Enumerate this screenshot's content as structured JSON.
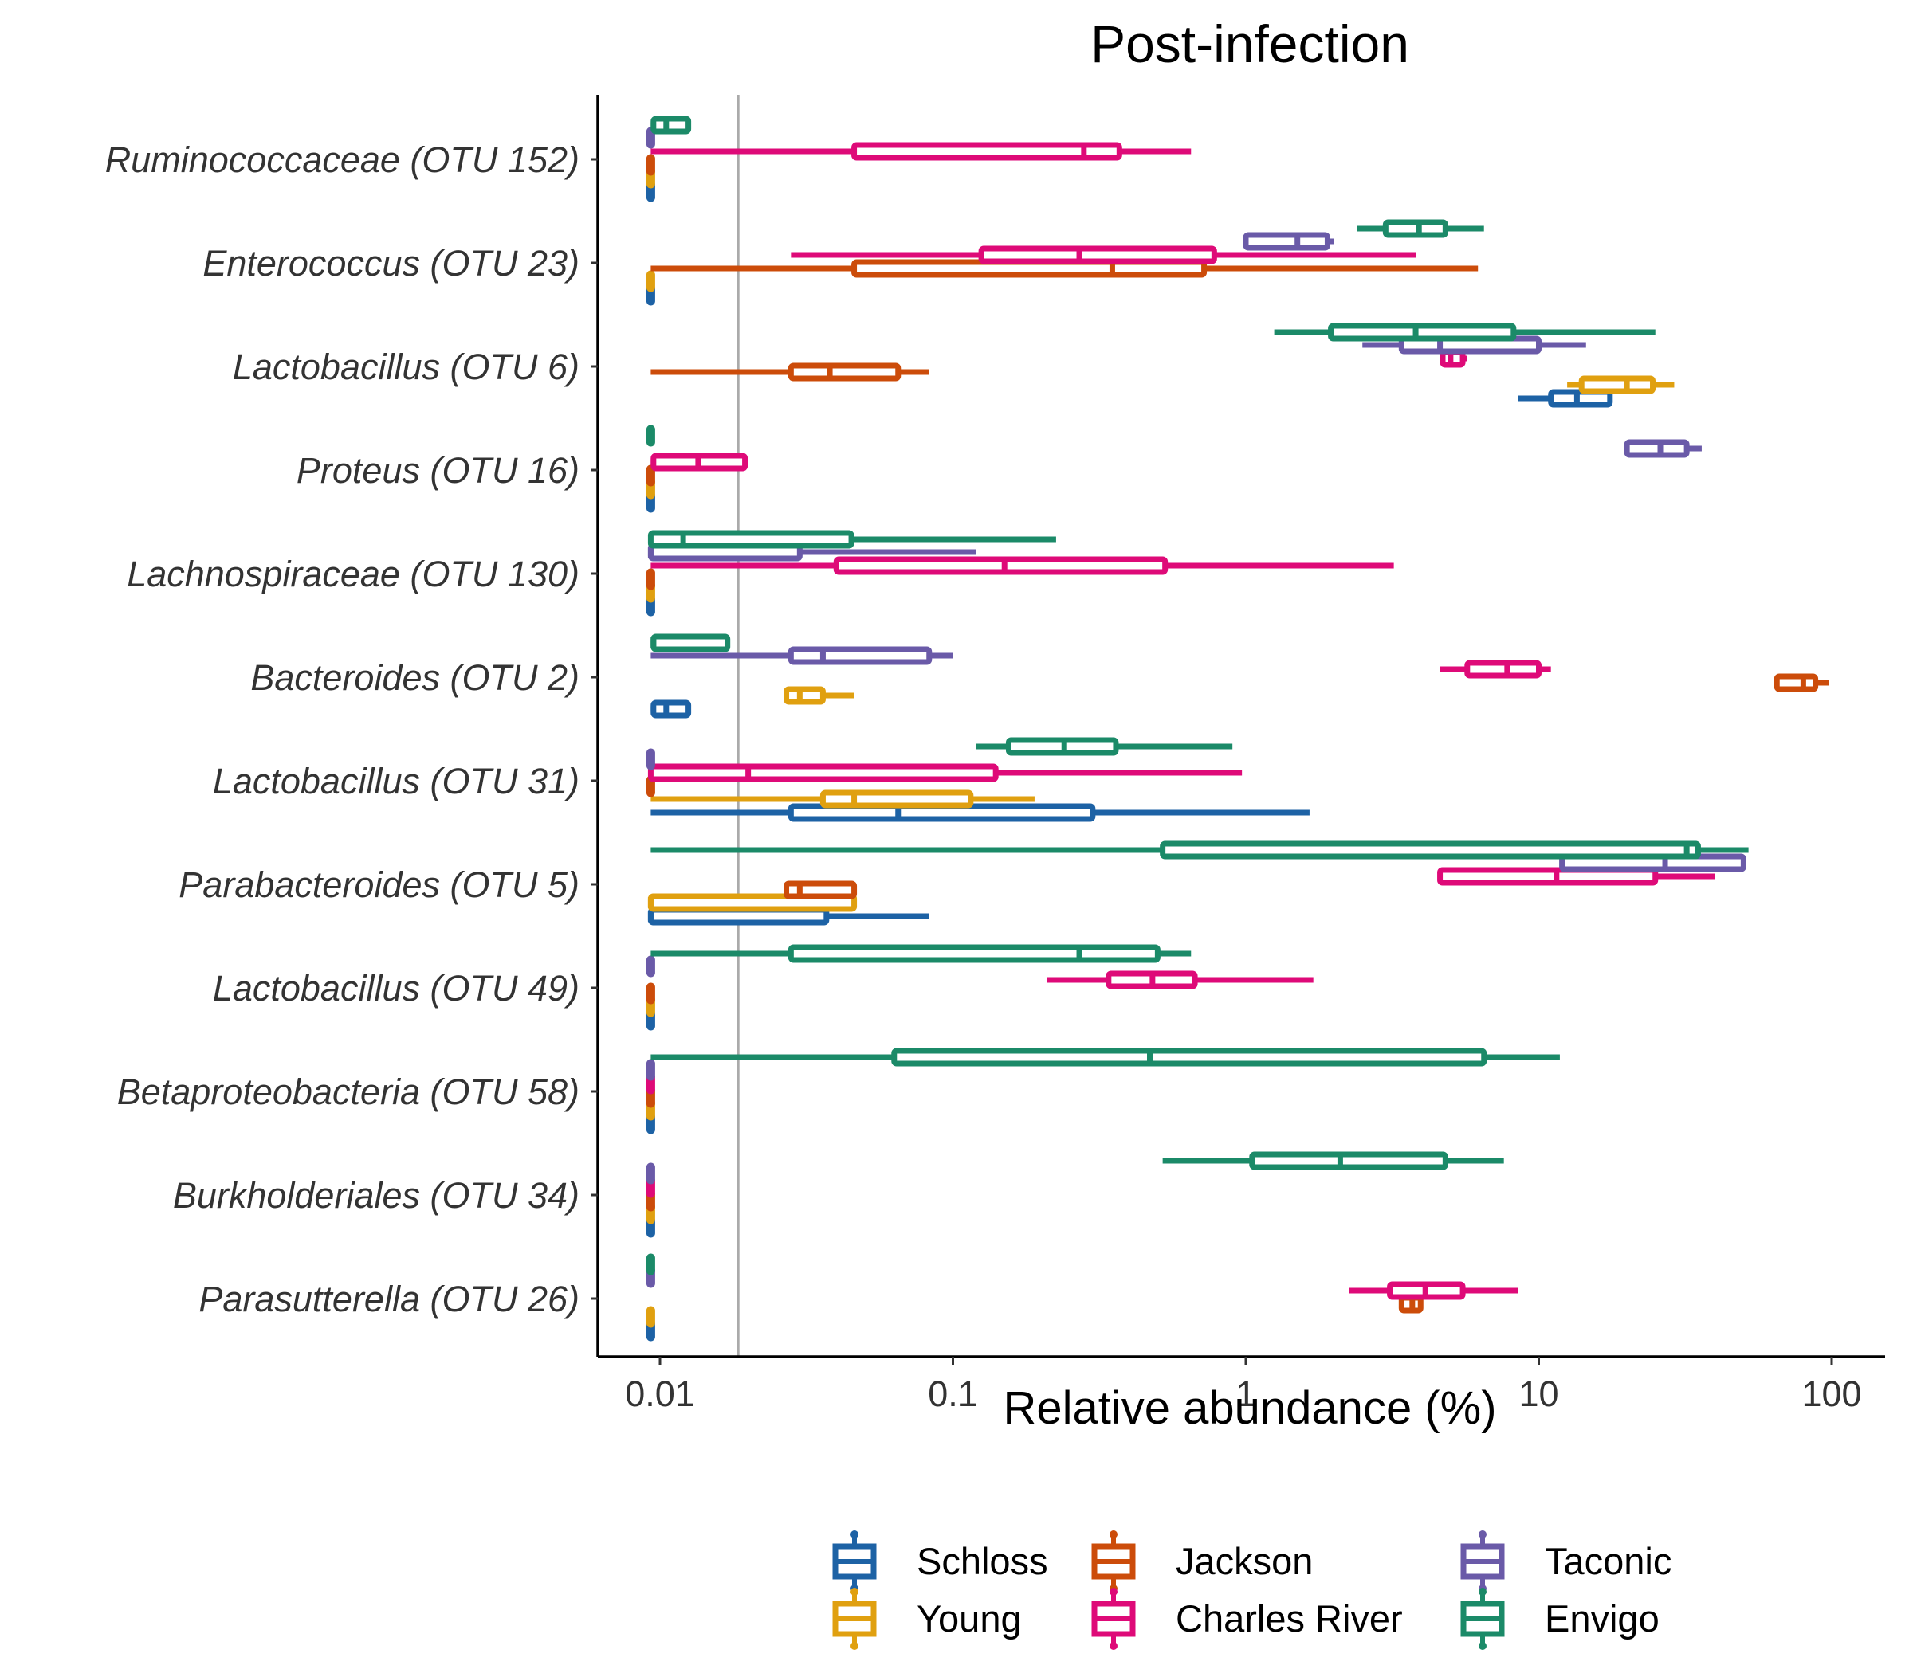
{
  "chart_data": {
    "type": "boxplot",
    "title": "Post-infection",
    "xlabel": "Relative abundance (%)",
    "ylabel": "",
    "x_scale": "log10",
    "xlim": [
      0.0066,
      150
    ],
    "x_ticks": [
      {
        "value": 0.01,
        "label": "0.01"
      },
      {
        "value": 0.1,
        "label": "0.1"
      },
      {
        "value": 1,
        "label": "1"
      },
      {
        "value": 10,
        "label": "10"
      },
      {
        "value": 100,
        "label": "100"
      }
    ],
    "limit_of_detection": 0.0185,
    "grid": false,
    "legend_position": "bottom",
    "series": [
      {
        "name": "Schloss",
        "color": "#1D62A5"
      },
      {
        "name": "Young",
        "color": "#E0A010"
      },
      {
        "name": "Jackson",
        "color": "#CC4C0A"
      },
      {
        "name": "Charles River",
        "color": "#DE0A78"
      },
      {
        "name": "Taconic",
        "color": "#6A5AA8"
      },
      {
        "name": "Envigo",
        "color": "#1B8A68"
      }
    ],
    "categories": [
      "Ruminococcaceae (OTU 152)",
      "Enterococcus (OTU 23)",
      "Lactobacillus (OTU 6)",
      "Proteus (OTU 16)",
      "Lachnospiraceae (OTU 130)",
      "Bacteroides (OTU 2)",
      "Lactobacillus (OTU 31)",
      "Parabacteroides (OTU 5)",
      "Lactobacillus (OTU 49)",
      "Betaproteobacteria (OTU 58)",
      "Burkholderiales (OTU 34)",
      "Parasutterella (OTU 26)"
    ],
    "boxes": [
      {
        "category": 0,
        "series": "Schloss",
        "min": 0.0093,
        "q1": 0.0093,
        "median": 0.0093,
        "q3": 0.0093,
        "max": 0.0093
      },
      {
        "category": 0,
        "series": "Young",
        "min": 0.0093,
        "q1": 0.0093,
        "median": 0.0093,
        "q3": 0.0093,
        "max": 0.0093
      },
      {
        "category": 0,
        "series": "Jackson",
        "min": 0.0093,
        "q1": 0.0093,
        "median": 0.0093,
        "q3": 0.0093,
        "max": 0.0093
      },
      {
        "category": 0,
        "series": "Charles River",
        "min": 0.0093,
        "q1": 0.046,
        "median": 0.28,
        "q3": 0.37,
        "max": 0.65
      },
      {
        "category": 0,
        "series": "Taconic",
        "min": 0.0093,
        "q1": 0.0093,
        "median": 0.0093,
        "q3": 0.0093,
        "max": 0.0093
      },
      {
        "category": 0,
        "series": "Envigo",
        "min": 0.0093,
        "q1": 0.0095,
        "median": 0.0105,
        "q3": 0.0125,
        "max": 0.0125
      },
      {
        "category": 1,
        "series": "Schloss",
        "min": 0.0093,
        "q1": 0.0093,
        "median": 0.0093,
        "q3": 0.0093,
        "max": 0.0093
      },
      {
        "category": 1,
        "series": "Young",
        "min": 0.0093,
        "q1": 0.0093,
        "median": 0.0093,
        "q3": 0.0093,
        "max": 0.0093
      },
      {
        "category": 1,
        "series": "Jackson",
        "min": 0.0093,
        "q1": 0.046,
        "median": 0.35,
        "q3": 0.72,
        "max": 6.2
      },
      {
        "category": 1,
        "series": "Charles River",
        "min": 0.028,
        "q1": 0.125,
        "median": 0.27,
        "q3": 0.78,
        "max": 3.8
      },
      {
        "category": 1,
        "series": "Taconic",
        "min": 1.0,
        "q1": 1.0,
        "median": 1.5,
        "q3": 1.9,
        "max": 2.0
      },
      {
        "category": 1,
        "series": "Envigo",
        "min": 2.4,
        "q1": 3.0,
        "median": 3.9,
        "q3": 4.8,
        "max": 6.5
      },
      {
        "category": 2,
        "series": "Schloss",
        "min": 8.5,
        "q1": 11.0,
        "median": 13.5,
        "q3": 17.5,
        "max": 17.5
      },
      {
        "category": 2,
        "series": "Young",
        "min": 12.5,
        "q1": 14.0,
        "median": 20.0,
        "q3": 24.5,
        "max": 29.0
      },
      {
        "category": 2,
        "series": "Jackson",
        "min": 0.0093,
        "q1": 0.028,
        "median": 0.038,
        "q3": 0.065,
        "max": 0.083
      },
      {
        "category": 2,
        "series": "Charles River",
        "min": 4.6,
        "q1": 4.7,
        "median": 5.0,
        "q3": 5.5,
        "max": 5.7
      },
      {
        "category": 2,
        "series": "Taconic",
        "min": 2.5,
        "q1": 3.4,
        "median": 4.6,
        "q3": 10.0,
        "max": 14.5
      },
      {
        "category": 2,
        "series": "Envigo",
        "min": 1.25,
        "q1": 1.95,
        "median": 3.8,
        "q3": 8.2,
        "max": 25.0
      },
      {
        "category": 3,
        "series": "Schloss",
        "min": 0.0093,
        "q1": 0.0093,
        "median": 0.0093,
        "q3": 0.0093,
        "max": 0.0093
      },
      {
        "category": 3,
        "series": "Young",
        "min": 0.0093,
        "q1": 0.0093,
        "median": 0.0093,
        "q3": 0.0093,
        "max": 0.0093
      },
      {
        "category": 3,
        "series": "Jackson",
        "min": 0.0093,
        "q1": 0.0093,
        "median": 0.0093,
        "q3": 0.0093,
        "max": 0.0093
      },
      {
        "category": 3,
        "series": "Charles River",
        "min": 0.0093,
        "q1": 0.0095,
        "median": 0.0135,
        "q3": 0.0195,
        "max": 0.0195
      },
      {
        "category": 3,
        "series": "Taconic",
        "min": 20.0,
        "q1": 20.0,
        "median": 26.0,
        "q3": 32.0,
        "max": 36.0
      },
      {
        "category": 3,
        "series": "Envigo",
        "min": 0.0093,
        "q1": 0.0093,
        "median": 0.0093,
        "q3": 0.0093,
        "max": 0.0093
      },
      {
        "category": 4,
        "series": "Schloss",
        "min": 0.0093,
        "q1": 0.0093,
        "median": 0.0093,
        "q3": 0.0093,
        "max": 0.0093
      },
      {
        "category": 4,
        "series": "Young",
        "min": 0.0093,
        "q1": 0.0093,
        "median": 0.0093,
        "q3": 0.0093,
        "max": 0.0093
      },
      {
        "category": 4,
        "series": "Jackson",
        "min": 0.0093,
        "q1": 0.0093,
        "median": 0.0093,
        "q3": 0.0093,
        "max": 0.0093
      },
      {
        "category": 4,
        "series": "Charles River",
        "min": 0.0093,
        "q1": 0.04,
        "median": 0.15,
        "q3": 0.53,
        "max": 3.2
      },
      {
        "category": 4,
        "series": "Taconic",
        "min": 0.0093,
        "q1": 0.0093,
        "median": 0.0093,
        "q3": 0.03,
        "max": 0.12
      },
      {
        "category": 4,
        "series": "Envigo",
        "min": 0.0093,
        "q1": 0.0093,
        "median": 0.012,
        "q3": 0.045,
        "max": 0.225
      },
      {
        "category": 5,
        "series": "Schloss",
        "min": 0.0093,
        "q1": 0.0095,
        "median": 0.0105,
        "q3": 0.0125,
        "max": 0.0125
      },
      {
        "category": 5,
        "series": "Young",
        "min": 0.027,
        "q1": 0.027,
        "median": 0.03,
        "q3": 0.036,
        "max": 0.046
      },
      {
        "category": 5,
        "series": "Jackson",
        "min": 65.0,
        "q1": 65.0,
        "median": 80.0,
        "q3": 88.0,
        "max": 98.0
      },
      {
        "category": 5,
        "series": "Charles River",
        "min": 4.6,
        "q1": 5.7,
        "median": 7.8,
        "q3": 10.0,
        "max": 11.0
      },
      {
        "category": 5,
        "series": "Taconic",
        "min": 0.0093,
        "q1": 0.028,
        "median": 0.036,
        "q3": 0.083,
        "max": 0.1
      },
      {
        "category": 5,
        "series": "Envigo",
        "min": 0.0093,
        "q1": 0.0095,
        "median": 0.0095,
        "q3": 0.017,
        "max": 0.017
      },
      {
        "category": 6,
        "series": "Schloss",
        "min": 0.0093,
        "q1": 0.028,
        "median": 0.065,
        "q3": 0.3,
        "max": 1.65
      },
      {
        "category": 6,
        "series": "Young",
        "min": 0.0093,
        "q1": 0.036,
        "median": 0.046,
        "q3": 0.115,
        "max": 0.19
      },
      {
        "category": 6,
        "series": "Jackson",
        "min": 0.0093,
        "q1": 0.0093,
        "median": 0.0093,
        "q3": 0.0093,
        "max": 0.0093
      },
      {
        "category": 6,
        "series": "Charles River",
        "min": 0.0093,
        "q1": 0.0093,
        "median": 0.02,
        "q3": 0.14,
        "max": 0.97
      },
      {
        "category": 6,
        "series": "Taconic",
        "min": 0.0093,
        "q1": 0.0093,
        "median": 0.0093,
        "q3": 0.0093,
        "max": 0.0093
      },
      {
        "category": 6,
        "series": "Envigo",
        "min": 0.12,
        "q1": 0.155,
        "median": 0.24,
        "q3": 0.36,
        "max": 0.9
      },
      {
        "category": 7,
        "series": "Schloss",
        "min": 0.0093,
        "q1": 0.0093,
        "median": 0.0093,
        "q3": 0.037,
        "max": 0.083
      },
      {
        "category": 7,
        "series": "Young",
        "min": 0.0093,
        "q1": 0.0093,
        "median": 0.0093,
        "q3": 0.046,
        "max": 0.046
      },
      {
        "category": 7,
        "series": "Jackson",
        "min": 0.027,
        "q1": 0.027,
        "median": 0.03,
        "q3": 0.046,
        "max": 0.046
      },
      {
        "category": 7,
        "series": "Charles River",
        "min": 4.6,
        "q1": 4.6,
        "median": 11.5,
        "q3": 25.0,
        "max": 40.0
      },
      {
        "category": 7,
        "series": "Taconic",
        "min": 12.0,
        "q1": 12.0,
        "median": 27.0,
        "q3": 50.0,
        "max": 50.0
      },
      {
        "category": 7,
        "series": "Envigo",
        "min": 0.0093,
        "q1": 0.52,
        "median": 32.0,
        "q3": 35.0,
        "max": 52.0
      },
      {
        "category": 8,
        "series": "Schloss",
        "min": 0.0093,
        "q1": 0.0093,
        "median": 0.0093,
        "q3": 0.0093,
        "max": 0.0093
      },
      {
        "category": 8,
        "series": "Young",
        "min": 0.0093,
        "q1": 0.0093,
        "median": 0.0093,
        "q3": 0.0093,
        "max": 0.0093
      },
      {
        "category": 8,
        "series": "Jackson",
        "min": 0.0093,
        "q1": 0.0093,
        "median": 0.0093,
        "q3": 0.0093,
        "max": 0.0093
      },
      {
        "category": 8,
        "series": "Charles River",
        "min": 0.21,
        "q1": 0.34,
        "median": 0.48,
        "q3": 0.67,
        "max": 1.7
      },
      {
        "category": 8,
        "series": "Taconic",
        "min": 0.0093,
        "q1": 0.0093,
        "median": 0.0093,
        "q3": 0.0093,
        "max": 0.0093
      },
      {
        "category": 8,
        "series": "Envigo",
        "min": 0.0093,
        "q1": 0.028,
        "median": 0.27,
        "q3": 0.5,
        "max": 0.65
      },
      {
        "category": 9,
        "series": "Schloss",
        "min": 0.0093,
        "q1": 0.0093,
        "median": 0.0093,
        "q3": 0.0093,
        "max": 0.0093
      },
      {
        "category": 9,
        "series": "Young",
        "min": 0.0093,
        "q1": 0.0093,
        "median": 0.0093,
        "q3": 0.0093,
        "max": 0.0093
      },
      {
        "category": 9,
        "series": "Jackson",
        "min": 0.0093,
        "q1": 0.0093,
        "median": 0.0093,
        "q3": 0.0093,
        "max": 0.0093
      },
      {
        "category": 9,
        "series": "Charles River",
        "min": 0.0093,
        "q1": 0.0093,
        "median": 0.0093,
        "q3": 0.0093,
        "max": 0.0093
      },
      {
        "category": 9,
        "series": "Taconic",
        "min": 0.0093,
        "q1": 0.0093,
        "median": 0.0093,
        "q3": 0.0093,
        "max": 0.0093
      },
      {
        "category": 9,
        "series": "Envigo",
        "min": 0.0093,
        "q1": 0.063,
        "median": 0.47,
        "q3": 6.5,
        "max": 11.8
      },
      {
        "category": 10,
        "series": "Schloss",
        "min": 0.0093,
        "q1": 0.0093,
        "median": 0.0093,
        "q3": 0.0093,
        "max": 0.0093
      },
      {
        "category": 10,
        "series": "Young",
        "min": 0.0093,
        "q1": 0.0093,
        "median": 0.0093,
        "q3": 0.0093,
        "max": 0.0093
      },
      {
        "category": 10,
        "series": "Jackson",
        "min": 0.0093,
        "q1": 0.0093,
        "median": 0.0093,
        "q3": 0.0093,
        "max": 0.0093
      },
      {
        "category": 10,
        "series": "Charles River",
        "min": 0.0093,
        "q1": 0.0093,
        "median": 0.0093,
        "q3": 0.0093,
        "max": 0.0093
      },
      {
        "category": 10,
        "series": "Taconic",
        "min": 0.0093,
        "q1": 0.0093,
        "median": 0.0093,
        "q3": 0.0093,
        "max": 0.0093
      },
      {
        "category": 10,
        "series": "Envigo",
        "min": 0.52,
        "q1": 1.05,
        "median": 2.1,
        "q3": 4.8,
        "max": 7.6
      },
      {
        "category": 11,
        "series": "Schloss",
        "min": 0.0093,
        "q1": 0.0093,
        "median": 0.0093,
        "q3": 0.0093,
        "max": 0.0093
      },
      {
        "category": 11,
        "series": "Young",
        "min": 0.0093,
        "q1": 0.0093,
        "median": 0.0093,
        "q3": 0.0093,
        "max": 0.0093
      },
      {
        "category": 11,
        "series": "Jackson",
        "min": 3.4,
        "q1": 3.4,
        "median": 3.7,
        "q3": 3.95,
        "max": 3.95
      },
      {
        "category": 11,
        "series": "Charles River",
        "min": 2.25,
        "q1": 3.1,
        "median": 4.1,
        "q3": 5.5,
        "max": 8.5
      },
      {
        "category": 11,
        "series": "Taconic",
        "min": 0.0093,
        "q1": 0.0093,
        "median": 0.0093,
        "q3": 0.0093,
        "max": 0.0093
      },
      {
        "category": 11,
        "series": "Envigo",
        "min": 0.0093,
        "q1": 0.0093,
        "median": 0.0093,
        "q3": 0.0093,
        "max": 0.0093
      }
    ]
  }
}
